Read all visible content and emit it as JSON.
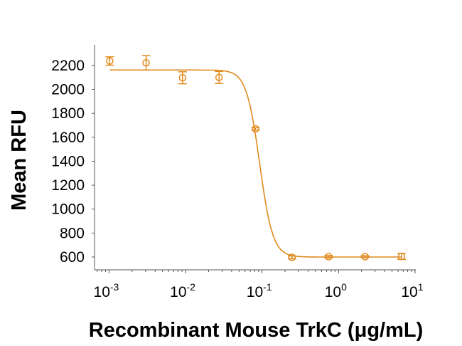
{
  "chart_data": {
    "type": "scatter",
    "title": "",
    "xlabel": "Recombinant Mouse TrkC (μg/mL)",
    "ylabel": "Mean RFU",
    "xscale": "log",
    "xlim_log10": [
      -3.19,
      1.01
    ],
    "ylim": [
      493,
      2372
    ],
    "x_ticks": [
      {
        "base": "10",
        "exp": "-3"
      },
      {
        "base": "10",
        "exp": "-2"
      },
      {
        "base": "10",
        "exp": "-1"
      },
      {
        "base": "10",
        "exp": "0"
      },
      {
        "base": "10",
        "exp": "1"
      }
    ],
    "y_ticks": [
      "600",
      "800",
      "1000",
      "1200",
      "1400",
      "1600",
      "1800",
      "2000",
      "2200"
    ],
    "grid": false,
    "color": "#E08A1E",
    "series": [
      {
        "name": "Mean RFU",
        "x": [
          0.00102,
          0.00305,
          0.00914,
          0.0274,
          0.0823,
          0.247,
          0.741,
          2.22,
          6.67
        ],
        "y": [
          2237,
          2222,
          2097,
          2100,
          1670,
          597,
          603,
          603,
          605
        ],
        "error": [
          35,
          60,
          50,
          50,
          10,
          12,
          10,
          8,
          25
        ]
      }
    ],
    "fit": {
      "model": "4PL",
      "top": 2162,
      "bottom": 600,
      "ic50": 0.093,
      "hill": 5
    }
  }
}
